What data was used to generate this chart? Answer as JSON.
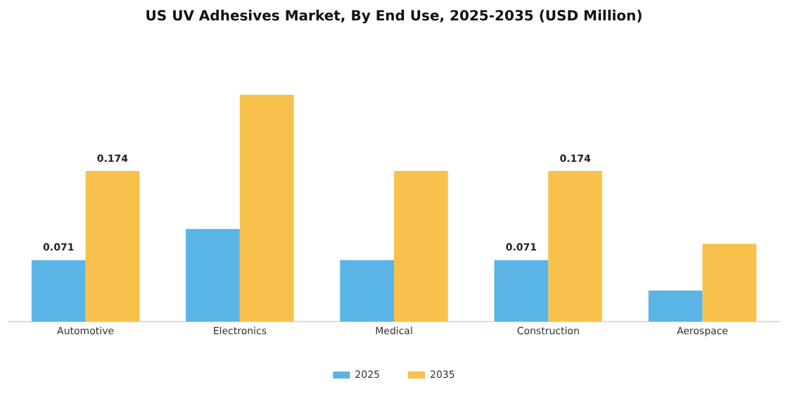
{
  "chart_data": {
    "type": "bar",
    "title": "US UV Adhesives Market, By End Use, 2025-2035 (USD Million)",
    "categories": [
      "Automotive",
      "Electronics",
      "Medical",
      "Construction",
      "Aerospace"
    ],
    "series": [
      {
        "name": "2025",
        "color": "#5ab4e5",
        "values": [
          0.071,
          0.107,
          0.071,
          0.071,
          0.036
        ],
        "value_labels": [
          "0.071",
          null,
          null,
          "0.071",
          null
        ]
      },
      {
        "name": "2035",
        "color": "#f8c14b",
        "values": [
          0.174,
          0.262,
          0.174,
          0.174,
          0.09
        ],
        "value_labels": [
          "0.174",
          null,
          null,
          "0.174",
          null
        ]
      }
    ],
    "legend": "bottom",
    "grid": false,
    "tick_labels": "x"
  }
}
